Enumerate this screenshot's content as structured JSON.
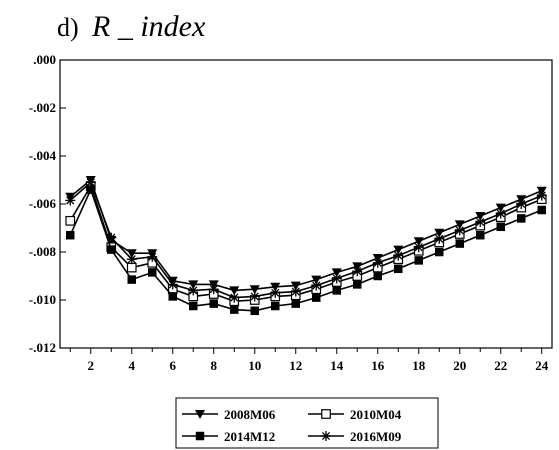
{
  "chart_data": {
    "type": "line",
    "title_prefix": "d)",
    "title": "R _ index",
    "xlabel": "",
    "ylabel": "",
    "x": [
      1,
      2,
      3,
      4,
      5,
      6,
      7,
      8,
      9,
      10,
      11,
      12,
      13,
      14,
      15,
      16,
      17,
      18,
      19,
      20,
      21,
      22,
      23,
      24
    ],
    "xlim": [
      0.5,
      24.5
    ],
    "ylim": [
      -0.012,
      0.0
    ],
    "x_tick_values": [
      2,
      4,
      6,
      8,
      10,
      12,
      14,
      16,
      18,
      20,
      22,
      24
    ],
    "x_tick_labels": [
      "2",
      "4",
      "6",
      "8",
      "10",
      "12",
      "14",
      "16",
      "18",
      "20",
      "22",
      "24"
    ],
    "y_tick_values": [
      0.0,
      -0.002,
      -0.004,
      -0.006,
      -0.008,
      -0.01,
      -0.012
    ],
    "y_tick_labels": [
      ".000",
      "-.002",
      "-.004",
      "-.006",
      "-.008",
      "-.010",
      "-.012"
    ],
    "grid": false,
    "legend_position": "bottom-center",
    "series": [
      {
        "name": "2008M06",
        "marker": "triangle-down",
        "color": "#000000",
        "values": [
          -0.0057,
          -0.005,
          -0.0075,
          -0.00805,
          -0.00805,
          -0.0092,
          -0.00935,
          -0.00935,
          -0.0096,
          -0.00955,
          -0.00945,
          -0.0094,
          -0.00915,
          -0.00885,
          -0.0086,
          -0.00825,
          -0.0079,
          -0.00755,
          -0.0072,
          -0.00685,
          -0.0065,
          -0.00615,
          -0.0058,
          -0.00545
        ]
      },
      {
        "name": "2010M04",
        "marker": "square-open",
        "color": "#000000",
        "values": [
          -0.0067,
          -0.00525,
          -0.0078,
          -0.00865,
          -0.00845,
          -0.00955,
          -0.00985,
          -0.00975,
          -0.01005,
          -0.01,
          -0.00985,
          -0.0098,
          -0.00955,
          -0.00925,
          -0.009,
          -0.00865,
          -0.0083,
          -0.00795,
          -0.0076,
          -0.00725,
          -0.0069,
          -0.00655,
          -0.00615,
          -0.0058
        ]
      },
      {
        "name": "2014M12",
        "marker": "square-filled",
        "color": "#000000",
        "values": [
          -0.0073,
          -0.0054,
          -0.0079,
          -0.00915,
          -0.00885,
          -0.00985,
          -0.01025,
          -0.01015,
          -0.0104,
          -0.01045,
          -0.01025,
          -0.01015,
          -0.0099,
          -0.0096,
          -0.00935,
          -0.009,
          -0.0087,
          -0.00835,
          -0.008,
          -0.00765,
          -0.0073,
          -0.00695,
          -0.0066,
          -0.00625
        ]
      },
      {
        "name": "2016M09",
        "marker": "asterisk",
        "color": "#000000",
        "values": [
          -0.00585,
          -0.0051,
          -0.0074,
          -0.0083,
          -0.0082,
          -0.00935,
          -0.0096,
          -0.00955,
          -0.0099,
          -0.00985,
          -0.0097,
          -0.00965,
          -0.0094,
          -0.0091,
          -0.0088,
          -0.00845,
          -0.00815,
          -0.0078,
          -0.00745,
          -0.0071,
          -0.00675,
          -0.0064,
          -0.006,
          -0.00565
        ]
      }
    ]
  }
}
